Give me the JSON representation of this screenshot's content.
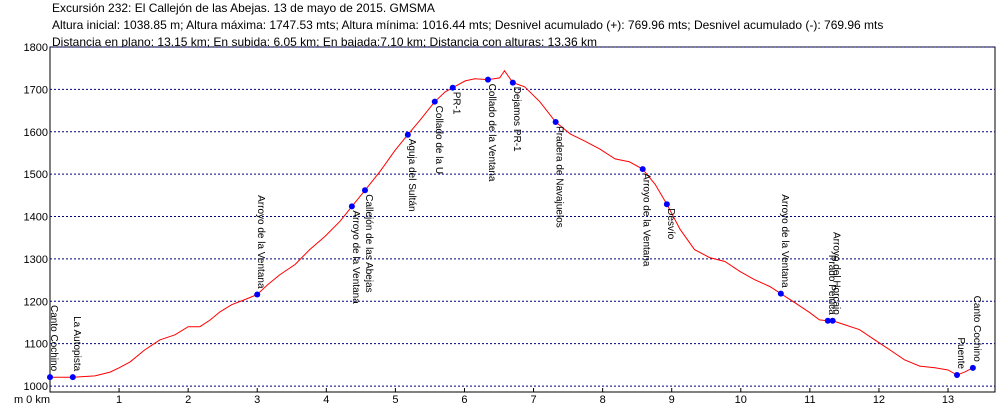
{
  "chart_data": {
    "type": "line",
    "title": "Excursión 232: El Callejón de las Abejas. 13 de mayo de 2015. GMSMA",
    "subtitles": [
      "Altura inicial:  1038.85 m; Altura máxima: 1747.53 mts; Altura mínima: 1016.44 mts; Desnivel acumulado (+): 769.96 mts; Desnivel acumulado (-): 769.96 mts",
      "Distancia en plano: 13.15 km; En subida: 6.05 km; En bajada:7.10 km; Distancia con alturas: 13.36 km"
    ],
    "color": "#ff0000",
    "x": [
      0,
      0.33,
      0.65,
      0.87,
      1.0,
      1.16,
      1.37,
      1.59,
      1.81,
      2.0,
      2.17,
      2.32,
      2.46,
      2.63,
      2.82,
      3.0,
      3.15,
      3.33,
      3.55,
      3.76,
      3.98,
      4.2,
      4.37,
      4.56,
      4.78,
      4.99,
      5.18,
      5.35,
      5.57,
      5.72,
      5.83,
      6.01,
      6.15,
      6.34,
      6.51,
      6.58,
      6.7,
      6.87,
      7.09,
      7.32,
      7.53,
      7.74,
      7.96,
      8.18,
      8.39,
      8.58,
      8.76,
      8.93,
      9.12,
      9.33,
      9.55,
      9.77,
      9.99,
      10.2,
      10.42,
      10.58,
      10.78,
      11.0,
      11.14,
      11.26,
      11.33,
      11.5,
      11.72,
      11.94,
      12.16,
      12.37,
      12.59,
      12.81,
      13.0,
      13.13,
      13.24,
      13.36
    ],
    "values": [
      1021,
      1021,
      1024,
      1033,
      1043,
      1057,
      1085,
      1109,
      1121,
      1140,
      1140,
      1156,
      1175,
      1192,
      1204,
      1216,
      1239,
      1263,
      1287,
      1322,
      1353,
      1389,
      1424,
      1462,
      1507,
      1555,
      1593,
      1626,
      1671,
      1694,
      1704,
      1720,
      1725,
      1723,
      1727,
      1744,
      1716,
      1706,
      1671,
      1623,
      1595,
      1578,
      1559,
      1536,
      1529,
      1512,
      1476,
      1429,
      1370,
      1322,
      1303,
      1294,
      1270,
      1251,
      1235,
      1218,
      1197,
      1173,
      1156,
      1154,
      1154,
      1145,
      1133,
      1109,
      1085,
      1062,
      1047,
      1043,
      1038,
      1026,
      1033,
      1043
    ],
    "points_color": "#0000ff",
    "waypoints": [
      {
        "x": 0,
        "y": 1021,
        "label": "Canto Cochino"
      },
      {
        "x": 0.33,
        "y": 1021,
        "label": "La Autopista"
      },
      {
        "x": 3.0,
        "y": 1216,
        "label": "Arroyo de la Ventana"
      },
      {
        "x": 4.37,
        "y": 1424,
        "label": "Arroyo de la Ventana"
      },
      {
        "x": 4.56,
        "y": 1462,
        "label": "Callejón de las Abejas"
      },
      {
        "x": 5.18,
        "y": 1593,
        "label": "Aguja del Sultán"
      },
      {
        "x": 5.57,
        "y": 1671,
        "label": "Collado de la U"
      },
      {
        "x": 5.83,
        "y": 1704,
        "label": "PR-1"
      },
      {
        "x": 6.34,
        "y": 1723,
        "label": "Collado de la Ventana"
      },
      {
        "x": 6.7,
        "y": 1716,
        "label": "Dejamos PR-1"
      },
      {
        "x": 7.32,
        "y": 1623,
        "label": "Pradera de Navajuelos"
      },
      {
        "x": 8.58,
        "y": 1512,
        "label": "Arroyo de la Ventana"
      },
      {
        "x": 8.93,
        "y": 1429,
        "label": "Desvío"
      },
      {
        "x": 10.58,
        "y": 1218,
        "label": "Arroyo de la Ventana"
      },
      {
        "x": 11.26,
        "y": 1154,
        "label": "Prado Peluca"
      },
      {
        "x": 11.33,
        "y": 1154,
        "label": "Arroyo del Horcajo"
      },
      {
        "x": 13.13,
        "y": 1026,
        "label": "Puente"
      },
      {
        "x": 13.36,
        "y": 1043,
        "label": "Canto Cochino"
      }
    ],
    "xlim": [
      0,
      13.68
    ],
    "xticks": [
      {
        "value": 0,
        "label": "m 0 km"
      },
      1,
      2,
      3,
      4,
      5,
      6,
      7,
      8,
      9,
      10,
      11,
      12,
      13
    ],
    "ylim": [
      986,
      1800
    ],
    "yticks": [
      1000,
      1100,
      1200,
      1300,
      1400,
      1500,
      1600,
      1700,
      1800
    ],
    "grid": true
  }
}
